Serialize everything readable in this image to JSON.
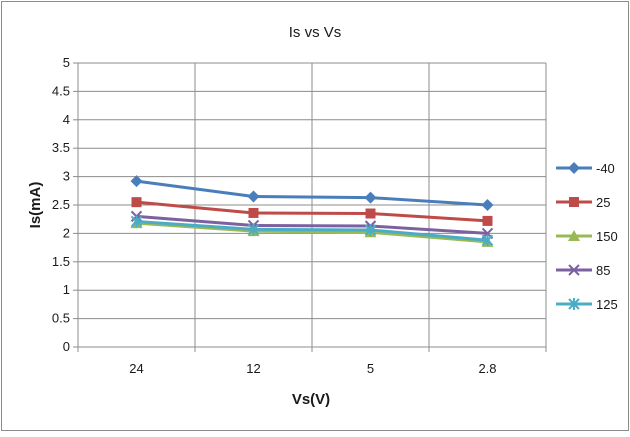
{
  "chart_data": {
    "type": "line",
    "title": "Is vs Vs",
    "xlabel": "Vs(V)",
    "ylabel": "Is(mA)",
    "categories": [
      "24",
      "12",
      "5",
      "2.8"
    ],
    "ylim": [
      0,
      5
    ],
    "yticks": [
      "0",
      "0.5",
      "1",
      "1.5",
      "2",
      "2.5",
      "3",
      "3.5",
      "4",
      "4.5",
      "5"
    ],
    "grid": true,
    "legend_position": "right",
    "series": [
      {
        "name": "-40",
        "values": [
          2.92,
          2.65,
          2.63,
          2.5
        ],
        "color": "#4A7EBB",
        "marker": "diamond"
      },
      {
        "name": "25",
        "values": [
          2.55,
          2.36,
          2.35,
          2.22
        ],
        "color": "#BE4B48",
        "marker": "square"
      },
      {
        "name": "150",
        "values": [
          2.18,
          2.04,
          2.02,
          1.85
        ],
        "color": "#98B954",
        "marker": "triangle"
      },
      {
        "name": "85",
        "values": [
          2.3,
          2.14,
          2.13,
          2.0
        ],
        "color": "#7D60A0",
        "marker": "x"
      },
      {
        "name": "125",
        "values": [
          2.21,
          2.07,
          2.06,
          1.88
        ],
        "color": "#4BACC6",
        "marker": "star"
      }
    ]
  }
}
